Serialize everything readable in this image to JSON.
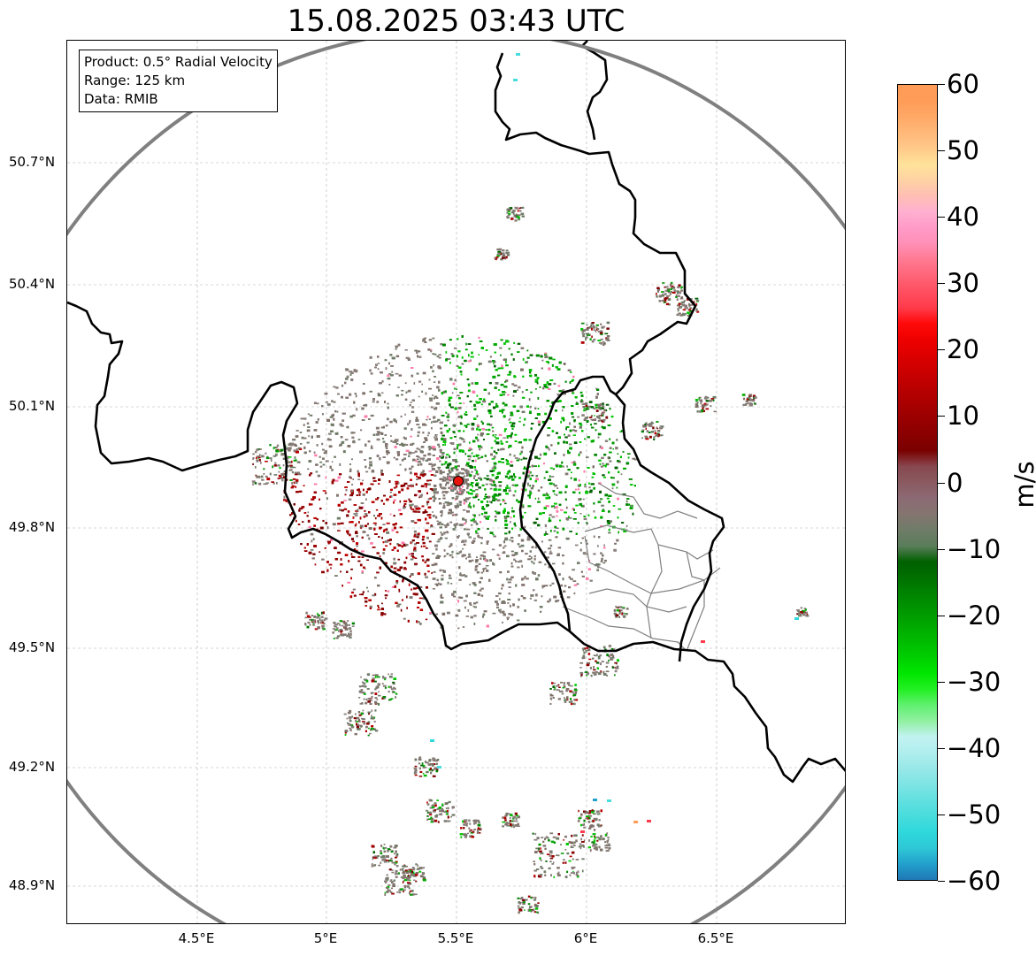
{
  "title": "15.08.2025 03:43 UTC",
  "info": {
    "product": "Product: 0.5° Radial Velocity",
    "range": "Range: 125 km",
    "data": "Data: RMIB"
  },
  "map": {
    "lat_ticks": [
      "50.7°N",
      "50.4°N",
      "50.1°N",
      "49.8°N",
      "49.5°N",
      "49.2°N",
      "48.9°N"
    ],
    "lon_ticks": [
      "4.5°E",
      "5°E",
      "5.5°E",
      "6°E",
      "6.5°E"
    ],
    "radar_site": {
      "lon": 5.505,
      "lat": 49.914
    },
    "range_ring_color": "#808080",
    "border_color": "#000000",
    "radar_marker_color": "#e8150f"
  },
  "colorbar": {
    "unit": "m/s",
    "vmin": -60,
    "vmax": 60,
    "tick_labels": [
      "60",
      "50",
      "40",
      "30",
      "20",
      "10",
      "0",
      "−10",
      "−20",
      "−30",
      "−40",
      "−50",
      "−60"
    ],
    "colors_low_to_high": [
      "#1f77b4",
      "#22a0cc",
      "#2ec8d6",
      "#2ed8dc",
      "#48dcdc",
      "#62e0e0",
      "#7ee4e4",
      "#98e8e8",
      "#b0eeee",
      "#c2f2f2",
      "#90f0a0",
      "#60f070",
      "#22f022",
      "#00e600",
      "#00cf00",
      "#00bb00",
      "#00a800",
      "#009600",
      "#008400",
      "#007000",
      "#006000",
      "#5a7d5a",
      "#6f7c68",
      "#847570",
      "#8c6a74",
      "#8a5a60",
      "#884850",
      "#7a0000",
      "#8a0000",
      "#9a0000",
      "#aa0000",
      "#bb0000",
      "#cc0000",
      "#dd0000",
      "#ee0000",
      "#ff0a0a",
      "#ff3b4b",
      "#ff4f60",
      "#ff6478",
      "#ff7a92",
      "#ff8fb6",
      "#ff9ac8",
      "#ffb0d0",
      "#ffbeb4",
      "#ffd2a4",
      "#ffe39a",
      "#ffc98a",
      "#ffb878",
      "#ffa866",
      "#ff9c58"
    ]
  }
}
